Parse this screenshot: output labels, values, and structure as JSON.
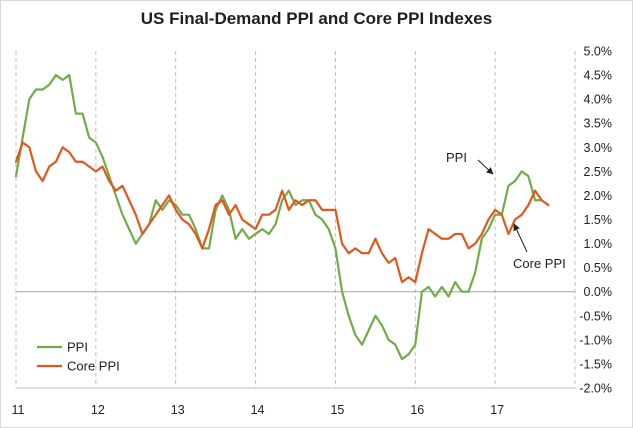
{
  "chart_data": {
    "type": "line",
    "title": "US Final-Demand PPI and Core PPI Indexes",
    "xlabel": "",
    "ylabel": "",
    "x_tick_labels": [
      "11",
      "12",
      "13",
      "14",
      "15",
      "16",
      "17"
    ],
    "x_tick_values": [
      2011,
      2012,
      2013,
      2014,
      2015,
      2016,
      2017
    ],
    "xlim": [
      2011,
      2018
    ],
    "ylim": [
      -2.0,
      5.0
    ],
    "y_step": 0.5,
    "y_tick_format": "percent_1dp",
    "grid": {
      "vertical_dashed": true,
      "horizontal": false
    },
    "zero_line": true,
    "legend": {
      "position": "bottom-left",
      "entries": [
        "PPI",
        "Core PPI"
      ]
    },
    "annotations": [
      {
        "text": "PPI",
        "points_to": "PPI",
        "x": 2017.38,
        "y": 2.35
      },
      {
        "text": "Core PPI",
        "points_to": "Core PPI",
        "x": 2017.29,
        "y": 1.35
      }
    ],
    "series": [
      {
        "name": "PPI",
        "color": "#70ad47",
        "x_start": 2011.0,
        "x_step": 0.08333,
        "values": [
          2.4,
          3.2,
          4.0,
          4.2,
          4.2,
          4.3,
          4.5,
          4.4,
          4.5,
          3.7,
          3.7,
          3.2,
          3.1,
          2.8,
          2.4,
          2.0,
          1.6,
          1.3,
          1.0,
          1.2,
          1.4,
          1.9,
          1.7,
          1.9,
          1.8,
          1.6,
          1.6,
          1.3,
          0.9,
          0.9,
          1.7,
          2.0,
          1.7,
          1.1,
          1.3,
          1.1,
          1.2,
          1.3,
          1.2,
          1.4,
          1.9,
          2.1,
          1.8,
          1.9,
          1.9,
          1.6,
          1.5,
          1.3,
          0.9,
          0.0,
          -0.5,
          -0.9,
          -1.1,
          -0.8,
          -0.5,
          -0.7,
          -1.0,
          -1.1,
          -1.4,
          -1.3,
          -1.1,
          0.0,
          0.1,
          -0.1,
          0.1,
          -0.1,
          0.2,
          0.0,
          0.0,
          0.4,
          1.1,
          1.3,
          1.6,
          1.6,
          2.2,
          2.3,
          2.5,
          2.4,
          1.9,
          1.9
        ]
      },
      {
        "name": "Core PPI",
        "color": "#e2571c",
        "x_start": 2011.0,
        "x_step": 0.08333,
        "values": [
          2.7,
          3.1,
          3.0,
          2.5,
          2.3,
          2.6,
          2.7,
          3.0,
          2.9,
          2.7,
          2.7,
          2.6,
          2.5,
          2.6,
          2.3,
          2.1,
          2.2,
          1.9,
          1.6,
          1.2,
          1.4,
          1.6,
          1.8,
          2.0,
          1.7,
          1.5,
          1.4,
          1.2,
          0.9,
          1.3,
          1.8,
          1.9,
          1.6,
          1.8,
          1.5,
          1.4,
          1.3,
          1.6,
          1.6,
          1.7,
          2.1,
          1.7,
          1.9,
          1.8,
          1.9,
          1.9,
          1.7,
          1.7,
          1.7,
          1.0,
          0.8,
          0.9,
          0.8,
          0.8,
          1.1,
          0.8,
          0.6,
          0.7,
          0.2,
          0.3,
          0.2,
          0.8,
          1.3,
          1.2,
          1.1,
          1.1,
          1.2,
          1.2,
          0.9,
          1.0,
          1.2,
          1.5,
          1.7,
          1.6,
          1.2,
          1.5,
          1.6,
          1.8,
          2.1,
          1.9,
          1.8
        ]
      }
    ]
  }
}
